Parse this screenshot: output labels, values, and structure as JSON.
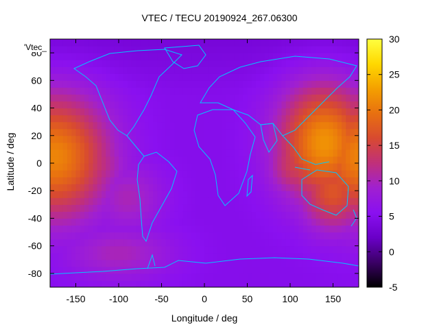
{
  "chart_data": {
    "type": "heatmap",
    "title": "VTEC / TECU 20190924_267.06300",
    "xlabel": "Longitude / deg",
    "ylabel": "Latitude / deg",
    "legend_key": "'Vtec_",
    "xlim": [
      -180,
      180
    ],
    "ylim": [
      -90,
      90
    ],
    "x_ticks": [
      -150,
      -100,
      -50,
      0,
      50,
      100,
      150
    ],
    "y_ticks": [
      -80,
      -60,
      -40,
      -20,
      0,
      20,
      40,
      60,
      80
    ],
    "colorbar": {
      "range": [
        -5,
        30
      ],
      "ticks": [
        -5,
        0,
        5,
        10,
        15,
        20,
        25,
        30
      ],
      "palette": [
        "#000000",
        "#3b0066",
        "#6a00c8",
        "#8a10f0",
        "#a020d0",
        "#c0307a",
        "#d84a30",
        "#e87010",
        "#f4a000",
        "#ffd800",
        "#ffff40"
      ]
    },
    "grid": false,
    "background_value": 5,
    "features": [
      {
        "name": "pacific-equatorial-peak",
        "lon": -175,
        "lat": 5,
        "value": 21
      },
      {
        "name": "east-pacific-band",
        "lon": -145,
        "lat": 0,
        "value": 15
      },
      {
        "name": "west-pacific-peak",
        "lon": 140,
        "lat": 15,
        "value": 22
      },
      {
        "name": "australia-southeast",
        "lon": 150,
        "lat": -20,
        "value": 17
      },
      {
        "name": "indonesia-band",
        "lon": 110,
        "lat": 0,
        "value": 15
      },
      {
        "name": "south-america-patch",
        "lon": -90,
        "lat": -25,
        "value": 10
      },
      {
        "name": "south-pacific-patch",
        "lon": -100,
        "lat": -65,
        "value": 10
      },
      {
        "name": "south-atlantic-low",
        "lon": 30,
        "lat": -40,
        "value": 4
      }
    ]
  }
}
